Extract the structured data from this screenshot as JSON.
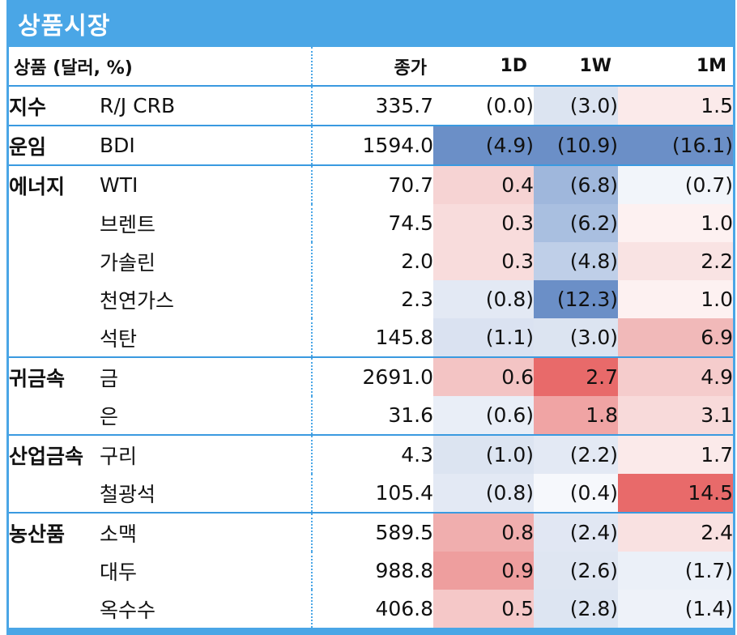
{
  "title": "상품시장",
  "bottom_label": "",
  "header": {
    "name": "상품 (달러, %)",
    "close": "종가",
    "d1": "1D",
    "w1": "1W",
    "m1": "1M"
  },
  "rows": [
    {
      "cat": "지수",
      "name": "R/J CRB",
      "close": "335.7",
      "d1": "(0.0)",
      "w1": "(3.0)",
      "m1": "1.5",
      "gstart": true,
      "colors": [
        "#ffffff",
        "#dce4f1",
        "#fbeaea"
      ]
    },
    {
      "cat": "운임",
      "name": "BDI",
      "close": "1594.0",
      "d1": "(4.9)",
      "w1": "(10.9)",
      "m1": "(16.1)",
      "gstart": true,
      "colors": [
        "#6b8fc7",
        "#6b8fc7",
        "#6b8fc7"
      ]
    },
    {
      "cat": "에너지",
      "name": "WTI",
      "close": "70.7",
      "d1": "0.4",
      "w1": "(6.8)",
      "m1": "(0.7)",
      "gstart": true,
      "colors": [
        "#f6d3d3",
        "#9fb7dc",
        "#f2f5fa"
      ]
    },
    {
      "cat": "",
      "name": "브렌트",
      "close": "74.5",
      "d1": "0.3",
      "w1": "(6.2)",
      "m1": "1.0",
      "gstart": false,
      "colors": [
        "#f8dcdc",
        "#a9bfe0",
        "#fdf1f1"
      ]
    },
    {
      "cat": "",
      "name": "가솔린",
      "close": "2.0",
      "d1": "0.3",
      "w1": "(4.8)",
      "m1": "2.2",
      "gstart": false,
      "colors": [
        "#f8dcdc",
        "#bfcfe8",
        "#f9e3e3"
      ]
    },
    {
      "cat": "",
      "name": "천연가스",
      "close": "2.3",
      "d1": "(0.8)",
      "w1": "(12.3)",
      "m1": "1.0",
      "gstart": false,
      "colors": [
        "#e3e9f4",
        "#6b8fc7",
        "#fdf1f1"
      ]
    },
    {
      "cat": "",
      "name": "석탄",
      "close": "145.8",
      "d1": "(1.1)",
      "w1": "(3.0)",
      "m1": "6.9",
      "gstart": false,
      "colors": [
        "#dae2f1",
        "#dce4f1",
        "#f1b9b9"
      ]
    },
    {
      "cat": "귀금속",
      "name": "금",
      "close": "2691.0",
      "d1": "0.6",
      "w1": "2.7",
      "m1": "4.9",
      "gstart": true,
      "colors": [
        "#f3c4c4",
        "#e86a6a",
        "#f5cccc"
      ]
    },
    {
      "cat": "",
      "name": "은",
      "close": "31.6",
      "d1": "(0.6)",
      "w1": "1.8",
      "m1": "3.1",
      "gstart": false,
      "colors": [
        "#e9eef7",
        "#f0a4a4",
        "#f8dada"
      ]
    },
    {
      "cat": "산업금속",
      "name": "구리",
      "close": "4.3",
      "d1": "(1.0)",
      "w1": "(2.2)",
      "m1": "1.7",
      "gstart": true,
      "colors": [
        "#dce4f1",
        "#e3e9f4",
        "#fbeaea"
      ]
    },
    {
      "cat": "",
      "name": "철광석",
      "close": "105.4",
      "d1": "(0.8)",
      "w1": "(0.4)",
      "m1": "14.5",
      "gstart": false,
      "colors": [
        "#e3e9f4",
        "#f6f8fc",
        "#e86a6a"
      ]
    },
    {
      "cat": "농산품",
      "name": "소맥",
      "close": "589.5",
      "d1": "0.8",
      "w1": "(2.4)",
      "m1": "2.4",
      "gstart": true,
      "colors": [
        "#f0aeae",
        "#e1e7f3",
        "#f9e1e1"
      ]
    },
    {
      "cat": "",
      "name": "대두",
      "close": "988.8",
      "d1": "0.9",
      "w1": "(2.6)",
      "m1": "(1.7)",
      "gstart": false,
      "colors": [
        "#ee9e9e",
        "#dfe6f2",
        "#ebf0f8"
      ]
    },
    {
      "cat": "",
      "name": "옥수수",
      "close": "406.8",
      "d1": "0.5",
      "w1": "(2.8)",
      "m1": "(1.4)",
      "gstart": false,
      "colors": [
        "#f5c8c8",
        "#dde5f2",
        "#eef2f9"
      ]
    }
  ]
}
